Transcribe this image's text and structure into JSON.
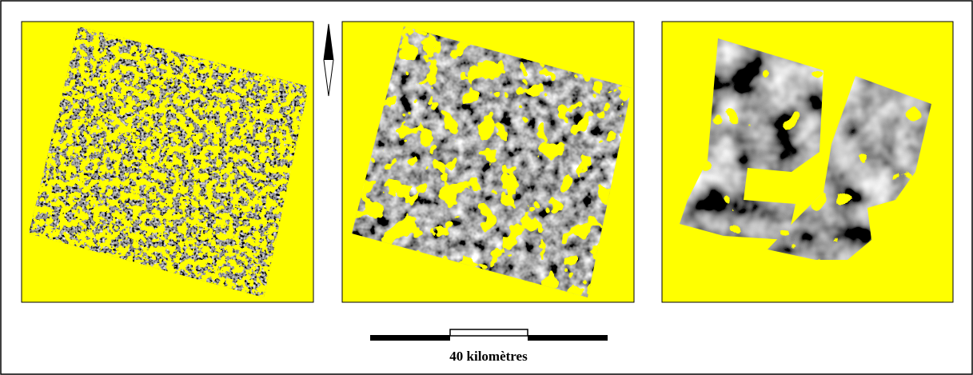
{
  "scale_bar": {
    "label": "40 kilomètres"
  }
}
